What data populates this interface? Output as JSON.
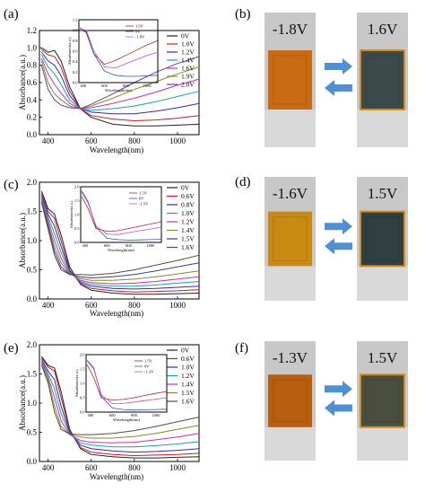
{
  "panels": {
    "a": "(a)",
    "b": "(b)",
    "c": "(c)",
    "d": "(d)",
    "e": "(e)",
    "f": "(f)"
  },
  "chart_data": [
    {
      "type": "line",
      "panel": "(a)",
      "xlabel": "Wavelength(nm)",
      "ylabel": "Absorbance(a.u.)",
      "xlim": [
        360,
        1100
      ],
      "ylim": [
        0,
        1.2
      ],
      "xticks": [
        "400",
        "600",
        "800",
        "1000"
      ],
      "yticks": [
        "0.0",
        "0.2",
        "0.4",
        "0.6",
        "0.8",
        "1.0",
        "1.2"
      ],
      "legend": [
        "0V",
        "1.0V",
        "1.2V",
        "1.4V",
        "1.6V",
        "1.9V",
        "2.0V"
      ],
      "x": [
        370,
        400,
        430,
        460,
        500,
        550,
        600,
        700,
        800,
        900,
        1000,
        1100
      ],
      "series": [
        {
          "name": "0V",
          "color": "#222222",
          "values": [
            1.0,
            0.95,
            0.97,
            0.85,
            0.55,
            0.3,
            0.2,
            0.12,
            0.1,
            0.1,
            0.11,
            0.12
          ]
        },
        {
          "name": "1.0V",
          "color": "#c02020",
          "values": [
            0.98,
            0.92,
            0.9,
            0.78,
            0.5,
            0.3,
            0.22,
            0.18,
            0.16,
            0.17,
            0.19,
            0.22
          ]
        },
        {
          "name": "1.2V",
          "color": "#2a2ad0",
          "values": [
            0.95,
            0.85,
            0.8,
            0.68,
            0.45,
            0.3,
            0.26,
            0.24,
            0.24,
            0.27,
            0.31,
            0.36
          ]
        },
        {
          "name": "1.4V",
          "color": "#1aa0a0",
          "values": [
            0.92,
            0.78,
            0.7,
            0.58,
            0.4,
            0.3,
            0.28,
            0.3,
            0.33,
            0.38,
            0.44,
            0.5
          ]
        },
        {
          "name": "1.6V",
          "color": "#c030c0",
          "values": [
            0.88,
            0.7,
            0.58,
            0.48,
            0.36,
            0.3,
            0.31,
            0.36,
            0.42,
            0.49,
            0.57,
            0.64
          ]
        },
        {
          "name": "1.9V",
          "color": "#8a8a20",
          "values": [
            0.85,
            0.6,
            0.47,
            0.4,
            0.33,
            0.3,
            0.33,
            0.42,
            0.52,
            0.61,
            0.7,
            0.78
          ]
        },
        {
          "name": "2.0V",
          "color": "#6a3a9a",
          "values": [
            0.8,
            0.52,
            0.4,
            0.34,
            0.31,
            0.3,
            0.35,
            0.47,
            0.6,
            0.72,
            0.82,
            0.9
          ]
        }
      ],
      "inset": {
        "xlabel": "Wavelength(nm)",
        "ylabel": "Absorbance(a.u.)",
        "legend": [
          "1.9V",
          "0V",
          "-1.8V"
        ],
        "xticks": [
          "400",
          "600",
          "800",
          "1000"
        ],
        "yticks": [
          "0.0",
          "0.2",
          "0.4",
          "0.6",
          "0.8",
          "1.0",
          "1.2"
        ],
        "xlim": [
          360,
          1100
        ],
        "ylim": [
          0,
          1.2
        ],
        "x": [
          370,
          430,
          500,
          600,
          700,
          800,
          900,
          1000,
          1100
        ],
        "series": [
          {
            "name": "1.9V",
            "color": "#c02020",
            "values": [
              1.05,
              0.95,
              0.55,
              0.35,
              0.42,
              0.52,
              0.62,
              0.72,
              0.8
            ]
          },
          {
            "name": "0V",
            "color": "#3050c0",
            "values": [
              1.0,
              0.97,
              0.55,
              0.22,
              0.14,
              0.12,
              0.12,
              0.13,
              0.14
            ]
          },
          {
            "name": "-1.8V",
            "color": "#c050c0",
            "values": [
              1.02,
              1.0,
              0.6,
              0.3,
              0.28,
              0.36,
              0.44,
              0.52,
              0.58
            ]
          }
        ]
      }
    },
    {
      "type": "line",
      "panel": "(c)",
      "xlabel": "Wavelength(nm)",
      "ylabel": "Absorbance(a.u.)",
      "xlim": [
        360,
        1100
      ],
      "ylim": [
        0,
        2.0
      ],
      "xticks": [
        "400",
        "600",
        "800",
        "1000"
      ],
      "yticks": [
        "0.0",
        "0.5",
        "1.0",
        "1.5",
        "2.0"
      ],
      "legend": [
        "0V",
        "0.6V",
        "0.8V",
        "1.0V",
        "1.2V",
        "1.4V",
        "1.5V",
        "1.6V"
      ],
      "x": [
        370,
        400,
        430,
        460,
        500,
        550,
        600,
        700,
        800,
        900,
        1000,
        1100
      ],
      "series": [
        {
          "name": "0V",
          "color": "#222222",
          "values": [
            1.85,
            1.55,
            1.45,
            1.1,
            0.55,
            0.25,
            0.15,
            0.1,
            0.08,
            0.08,
            0.09,
            0.1
          ]
        },
        {
          "name": "0.6V",
          "color": "#c02020",
          "values": [
            1.82,
            1.5,
            1.38,
            1.0,
            0.5,
            0.26,
            0.18,
            0.14,
            0.12,
            0.13,
            0.14,
            0.16
          ]
        },
        {
          "name": "0.8V",
          "color": "#2a2ad0",
          "values": [
            1.78,
            1.45,
            1.25,
            0.9,
            0.48,
            0.28,
            0.22,
            0.18,
            0.17,
            0.18,
            0.2,
            0.22
          ]
        },
        {
          "name": "1.0V",
          "color": "#1aa0a0",
          "values": [
            1.75,
            1.4,
            1.12,
            0.8,
            0.46,
            0.3,
            0.25,
            0.22,
            0.22,
            0.24,
            0.27,
            0.3
          ]
        },
        {
          "name": "1.2V",
          "color": "#c030c0",
          "values": [
            1.72,
            1.35,
            1.0,
            0.7,
            0.44,
            0.32,
            0.28,
            0.26,
            0.27,
            0.3,
            0.34,
            0.38
          ]
        },
        {
          "name": "1.4V",
          "color": "#8a8a20",
          "values": [
            1.7,
            1.3,
            0.9,
            0.62,
            0.43,
            0.35,
            0.32,
            0.32,
            0.34,
            0.38,
            0.43,
            0.48
          ]
        },
        {
          "name": "1.5V",
          "color": "#3a3aa0",
          "values": [
            1.68,
            1.25,
            0.82,
            0.55,
            0.42,
            0.38,
            0.36,
            0.38,
            0.42,
            0.48,
            0.55,
            0.62
          ]
        },
        {
          "name": "1.6V",
          "color": "#5a4a3a",
          "values": [
            1.65,
            1.2,
            0.75,
            0.5,
            0.42,
            0.42,
            0.41,
            0.44,
            0.5,
            0.58,
            0.66,
            0.75
          ]
        }
      ],
      "inset": {
        "xlabel": "Wavelength(nm)",
        "ylabel": "Absorbance(a.u.)",
        "legend": [
          "1.5V",
          "0V",
          "-1.5V"
        ],
        "xticks": [
          "400",
          "600",
          "800",
          "1000"
        ],
        "yticks": [
          "0.0",
          "0.5",
          "1.0",
          "1.5",
          "2.0"
        ],
        "xlim": [
          360,
          1100
        ],
        "ylim": [
          0,
          2.0
        ],
        "x": [
          370,
          430,
          500,
          600,
          700,
          800,
          900,
          1000,
          1100
        ],
        "series": [
          {
            "name": "1.5V",
            "color": "#c02020",
            "values": [
              1.65,
              1.2,
              0.5,
              0.4,
              0.42,
              0.5,
              0.58,
              0.66,
              0.74
            ]
          },
          {
            "name": "0V",
            "color": "#3050c0",
            "values": [
              1.85,
              1.45,
              0.55,
              0.15,
              0.1,
              0.08,
              0.09,
              0.1,
              0.11
            ]
          },
          {
            "name": "-1.5V",
            "color": "#c050c0",
            "values": [
              1.8,
              1.4,
              0.6,
              0.3,
              0.28,
              0.35,
              0.42,
              0.48,
              0.55
            ]
          }
        ]
      }
    },
    {
      "type": "line",
      "panel": "(e)",
      "xlabel": "Wavelength(nm)",
      "ylabel": "Absorbance(a.u.)",
      "xlim": [
        360,
        1100
      ],
      "ylim": [
        0,
        2.0
      ],
      "xticks": [
        "400",
        "600",
        "800",
        "1000"
      ],
      "yticks": [
        "0.0",
        "0.5",
        "1.0",
        "1.5",
        "2.0"
      ],
      "legend": [
        "0V",
        "0.6V",
        "1.0V",
        "1.2V",
        "1.4V",
        "1.5V",
        "1.6V"
      ],
      "x": [
        370,
        400,
        430,
        460,
        500,
        550,
        600,
        700,
        800,
        900,
        1000,
        1100
      ],
      "series": [
        {
          "name": "0V",
          "color": "#222222",
          "values": [
            1.8,
            1.65,
            1.6,
            1.2,
            0.55,
            0.22,
            0.12,
            0.08,
            0.06,
            0.06,
            0.07,
            0.08
          ]
        },
        {
          "name": "0.6V",
          "color": "#c02020",
          "values": [
            1.78,
            1.62,
            1.55,
            1.1,
            0.52,
            0.24,
            0.16,
            0.12,
            0.1,
            0.11,
            0.12,
            0.14
          ]
        },
        {
          "name": "1.0V",
          "color": "#2a2ad0",
          "values": [
            1.75,
            1.55,
            1.4,
            0.95,
            0.5,
            0.28,
            0.22,
            0.18,
            0.16,
            0.17,
            0.19,
            0.22
          ]
        },
        {
          "name": "1.2V",
          "color": "#1aa0a0",
          "values": [
            1.72,
            1.5,
            1.25,
            0.82,
            0.48,
            0.32,
            0.28,
            0.25,
            0.25,
            0.27,
            0.3,
            0.34
          ]
        },
        {
          "name": "1.4V",
          "color": "#c030c0",
          "values": [
            1.7,
            1.45,
            1.1,
            0.7,
            0.46,
            0.36,
            0.33,
            0.32,
            0.33,
            0.37,
            0.42,
            0.48
          ]
        },
        {
          "name": "1.5V",
          "color": "#8a8a20",
          "values": [
            1.68,
            1.4,
            0.95,
            0.6,
            0.46,
            0.42,
            0.4,
            0.4,
            0.43,
            0.48,
            0.55,
            0.62
          ]
        },
        {
          "name": "1.6V",
          "color": "#5a4a3a",
          "values": [
            1.65,
            1.35,
            0.85,
            0.55,
            0.47,
            0.46,
            0.46,
            0.48,
            0.53,
            0.6,
            0.68,
            0.76
          ]
        }
      ],
      "inset": {
        "xlabel": "Wavelength(nm)",
        "ylabel": "Absorbance(a.u.)",
        "legend": [
          "1.5V",
          "0V",
          "-1.3V"
        ],
        "xticks": [
          "400",
          "600",
          "800",
          "1000"
        ],
        "yticks": [
          "0.0",
          "0.5",
          "1.0",
          "1.5",
          "2.0"
        ],
        "xlim": [
          360,
          1100
        ],
        "ylim": [
          0,
          2.0
        ],
        "x": [
          370,
          430,
          500,
          600,
          700,
          800,
          900,
          1000,
          1100
        ],
        "series": [
          {
            "name": "1.5V",
            "color": "#c02020",
            "values": [
              1.65,
              1.2,
              0.5,
              0.42,
              0.44,
              0.5,
              0.58,
              0.65,
              0.72
            ]
          },
          {
            "name": "0V",
            "color": "#3050c0",
            "values": [
              1.8,
              1.55,
              0.55,
              0.14,
              0.09,
              0.07,
              0.08,
              0.09,
              0.1
            ]
          },
          {
            "name": "-1.3V",
            "color": "#c050c0",
            "values": [
              1.78,
              1.5,
              0.6,
              0.3,
              0.3,
              0.35,
              0.4,
              0.45,
              0.5
            ]
          }
        ]
      }
    }
  ],
  "photos": [
    {
      "panel": "(b)",
      "left_voltage": "-1.8V",
      "right_voltage": "1.6V",
      "left_color": "#c96b12",
      "right_color": "#3d4a4a"
    },
    {
      "panel": "(d)",
      "left_voltage": "-1.6V",
      "right_voltage": "1.5V",
      "left_color": "#c98a12",
      "right_color": "#2f3f42"
    },
    {
      "panel": "(f)",
      "left_voltage": "-1.3V",
      "right_voltage": "1.5V",
      "left_color": "#b85e10",
      "right_color": "#4a4e3e"
    }
  ],
  "arrow_color": "#4f8fd6"
}
